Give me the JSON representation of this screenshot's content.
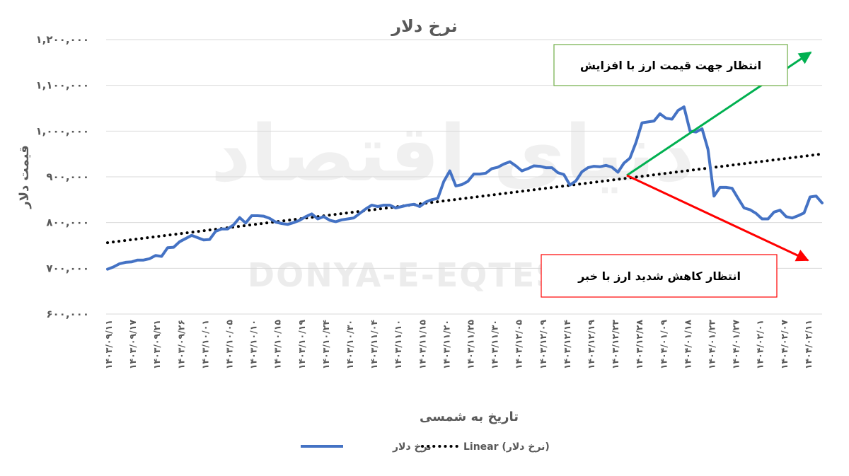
{
  "chart_data": {
    "type": "line",
    "title": "نرخ دلار",
    "xlabel": "تاریخ به شمسی",
    "ylabel": "قیمت دلار",
    "ylim": [
      600000,
      1200000
    ],
    "yticks": [
      600000,
      700000,
      800000,
      900000,
      1000000,
      1100000,
      1200000
    ],
    "ytick_labels": [
      "۶۰۰,۰۰۰",
      "۷۰۰,۰۰۰",
      "۸۰۰,۰۰۰",
      "۹۰۰,۰۰۰",
      "۱,۰۰۰,۰۰۰",
      "۱,۱۰۰,۰۰۰",
      "۱,۲۰۰,۰۰۰"
    ],
    "xtick_labels": [
      "۱۴۰۳/۰۹/۱۱",
      "۱۴۰۳/۰۹/۱۷",
      "۱۴۰۳/۰۹/۲۱",
      "۱۴۰۳/۰۹/۲۶",
      "۱۴۰۳/۱۰/۰۱",
      "۱۴۰۳/۱۰/۰۵",
      "۱۴۰۳/۱۰/۱۰",
      "۱۴۰۳/۱۰/۱۵",
      "۱۴۰۳/۱۰/۱۹",
      "۱۴۰۳/۱۰/۲۴",
      "۱۴۰۳/۱۰/۳۰",
      "۱۴۰۳/۱۱/۰۴",
      "۱۴۰۳/۱۱/۱۰",
      "۱۴۰۳/۱۱/۱۵",
      "۱۴۰۳/۱۱/۲۰",
      "۱۴۰۳/۱۱/۲۵",
      "۱۴۰۳/۱۱/۳۰",
      "۱۴۰۳/۱۲/۰۵",
      "۱۴۰۳/۱۲/۰۹",
      "۱۴۰۳/۱۲/۱۴",
      "۱۴۰۳/۱۲/۱۹",
      "۱۴۰۳/۱۲/۲۳",
      "۱۴۰۳/۱۲/۲۸",
      "۱۴۰۴/۰۱/۰۹",
      "۱۴۰۴/۰۱/۱۸",
      "۱۴۰۴/۰۱/۲۳",
      "۱۴۰۴/۰۱/۲۷",
      "۱۴۰۴/۰۲/۰۱",
      "۱۴۰۴/۰۲/۰۷",
      "۱۴۰۴/۰۲/۱۱"
    ],
    "grid": true,
    "legend_position": "bottom",
    "series": [
      {
        "name": "نرخ دلار",
        "style": "solid",
        "color": "#4472C4",
        "values": [
          698000,
          703000,
          710000,
          713000,
          714000,
          718000,
          718000,
          721000,
          728000,
          726000,
          745000,
          746000,
          758000,
          765000,
          772000,
          767000,
          762000,
          763000,
          781000,
          786000,
          786000,
          795000,
          811000,
          799000,
          815000,
          815000,
          814000,
          809000,
          801000,
          798000,
          796000,
          800000,
          805000,
          813000,
          819000,
          808000,
          813000,
          805000,
          802000,
          806000,
          808000,
          810000,
          820000,
          830000,
          838000,
          835000,
          838000,
          838000,
          832000,
          835000,
          838000,
          840000,
          835000,
          845000,
          850000,
          853000,
          890000,
          913000,
          880000,
          883000,
          890000,
          906000,
          906000,
          908000,
          918000,
          921000,
          928000,
          933000,
          924000,
          913000,
          918000,
          924000,
          923000,
          920000,
          920000,
          909000,
          905000,
          882000,
          891000,
          911000,
          920000,
          923000,
          922000,
          925000,
          921000,
          910000,
          930000,
          941000,
          975000,
          1018000,
          1020000,
          1022000,
          1038000,
          1028000,
          1026000,
          1045000,
          1053000,
          1000000,
          998000,
          1005000,
          960000,
          858000,
          877000,
          877000,
          875000,
          853000,
          832000,
          828000,
          820000,
          808000,
          808000,
          823000,
          827000,
          813000,
          810000,
          815000,
          821000,
          856000,
          858000,
          843000
        ]
      },
      {
        "name": "Linear (نرخ دلار)",
        "style": "dotted",
        "color": "#000000",
        "trend_start": 756000,
        "trend_end": 950000
      }
    ],
    "annotations": [
      {
        "text": "انتظار جهت قیمت ارز با افزایش",
        "box_color": "#70AD47",
        "arrow_color": "#00B050"
      },
      {
        "text": "انتظار کاهش شدید ارز با خبر",
        "box_color": "#FF0000",
        "arrow_color": "#FF0000"
      }
    ]
  },
  "watermark": {
    "text_fa": "دنیای اقتصاد",
    "text_en": "DONYA-E-EQTESAD"
  }
}
